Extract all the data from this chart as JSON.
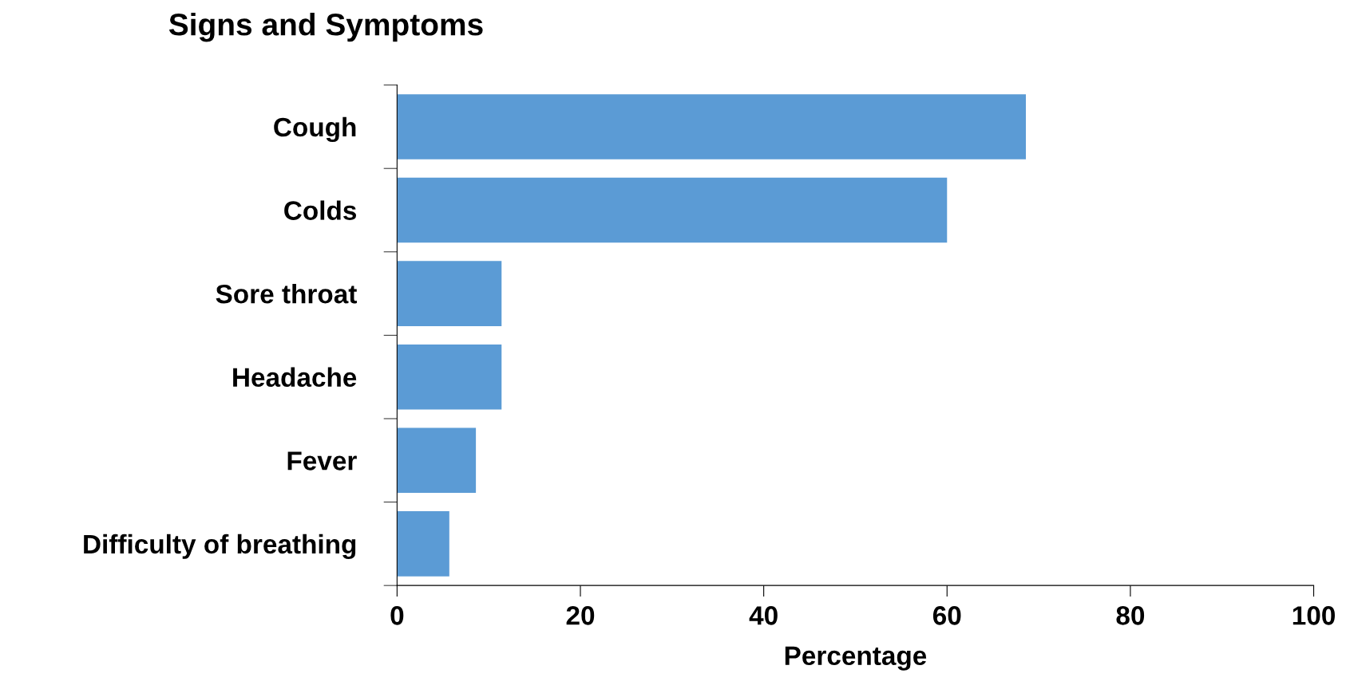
{
  "chart_data": {
    "type": "bar",
    "orientation": "horizontal",
    "title": "Signs and Symptoms",
    "xlabel": "Percentage",
    "categories": [
      "Cough",
      "Colds",
      "Sore throat",
      "Headache",
      "Fever",
      "Difficulty of breathing"
    ],
    "values": [
      68.6,
      60.0,
      11.4,
      11.4,
      8.6,
      5.7
    ],
    "color": "#5b9bd5",
    "xlim": [
      0,
      100
    ],
    "xticks": [
      0,
      20,
      40,
      60,
      80,
      100
    ],
    "grid": false,
    "legend": false
  }
}
